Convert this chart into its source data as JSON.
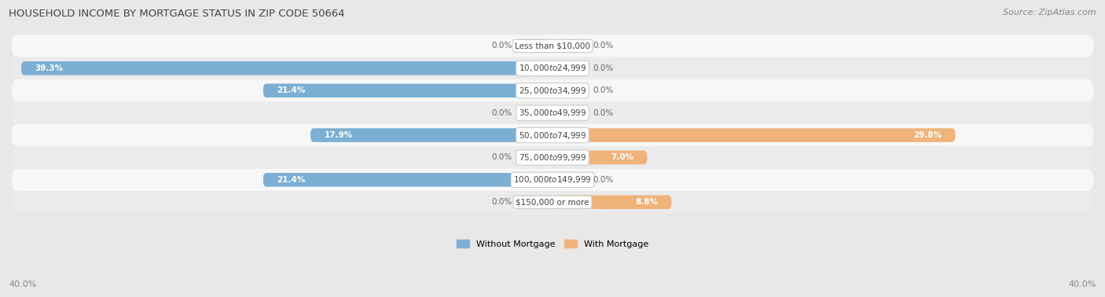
{
  "title": "HOUSEHOLD INCOME BY MORTGAGE STATUS IN ZIP CODE 50664",
  "source": "Source: ZipAtlas.com",
  "categories": [
    "Less than $10,000",
    "$10,000 to $24,999",
    "$25,000 to $34,999",
    "$35,000 to $49,999",
    "$50,000 to $74,999",
    "$75,000 to $99,999",
    "$100,000 to $149,999",
    "$150,000 or more"
  ],
  "without_mortgage": [
    0.0,
    39.3,
    21.4,
    0.0,
    17.9,
    0.0,
    21.4,
    0.0
  ],
  "with_mortgage": [
    0.0,
    0.0,
    0.0,
    0.0,
    29.8,
    7.0,
    0.0,
    8.8
  ],
  "color_without": "#7bafd4",
  "color_with": "#f0b47a",
  "color_without_light": "#b8d4ea",
  "color_with_light": "#f8d9b8",
  "axis_max": 40.0,
  "bg_color": "#e8e8e8",
  "row_bg_even": "#f7f7f7",
  "row_bg_odd": "#ebebeb",
  "label_bg": "#ffffff",
  "legend_labels": [
    "Without Mortgage",
    "With Mortgage"
  ],
  "axis_label_left": "40.0%",
  "axis_label_right": "40.0%",
  "stub_size": 2.5
}
